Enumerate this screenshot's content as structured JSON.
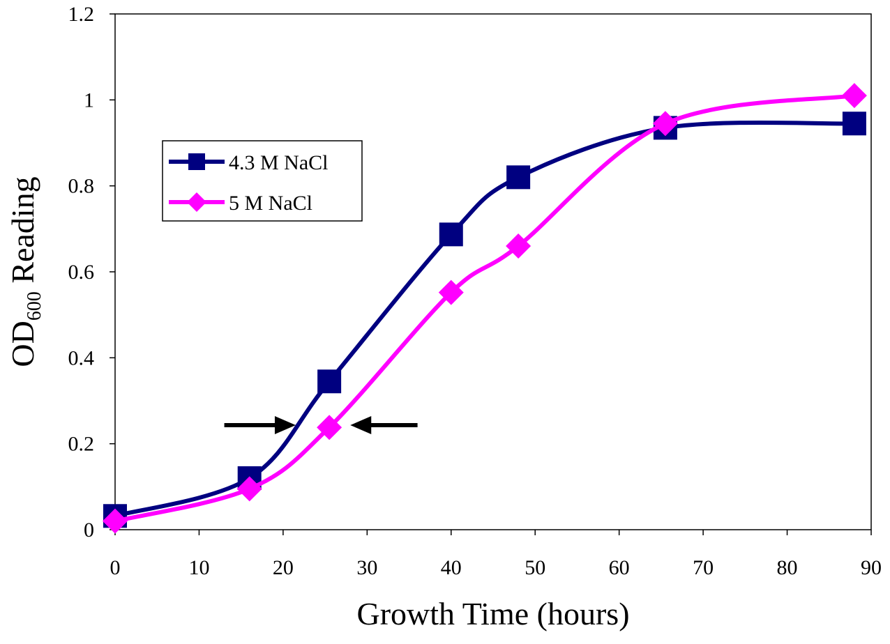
{
  "chart_data": {
    "type": "line",
    "title": "",
    "xlabel": "Growth Time (hours)",
    "ylabel_main": "OD",
    "ylabel_sub": "600",
    "ylabel_rest": " Reading",
    "xlim": [
      0,
      90
    ],
    "ylim": [
      0,
      1.2
    ],
    "xticks": [
      0,
      10,
      20,
      30,
      40,
      50,
      60,
      70,
      80,
      90
    ],
    "yticks": [
      0,
      0.2,
      0.4,
      0.6,
      0.8,
      1,
      1.2
    ],
    "xtick_labels": [
      "0",
      "10",
      "20",
      "30",
      "40",
      "50",
      "60",
      "70",
      "80",
      "90"
    ],
    "ytick_labels": [
      "0",
      "0.2",
      "0.4",
      "0.6",
      "0.8",
      "1",
      "1.2"
    ],
    "grid": false,
    "legend_position": "left",
    "series": [
      {
        "name": "4.3 M NaCl",
        "color": "#000080",
        "marker": "square",
        "x": [
          0,
          16,
          25.5,
          40,
          48,
          65.5,
          88
        ],
        "y": [
          0.032,
          0.12,
          0.345,
          0.687,
          0.82,
          0.935,
          0.945
        ]
      },
      {
        "name": "5 M NaCl",
        "color": "#ff00ff",
        "marker": "diamond",
        "x": [
          0,
          16,
          25.5,
          40,
          48,
          65.5,
          88
        ],
        "y": [
          0.02,
          0.095,
          0.238,
          0.552,
          0.66,
          0.945,
          1.01
        ]
      }
    ],
    "annotations": [
      {
        "type": "arrow",
        "direction": "right",
        "x_from": 13,
        "x_to": 21.5,
        "y": 0.24
      },
      {
        "type": "arrow",
        "direction": "left",
        "x_from": 36,
        "x_to": 28,
        "y": 0.24
      }
    ]
  }
}
